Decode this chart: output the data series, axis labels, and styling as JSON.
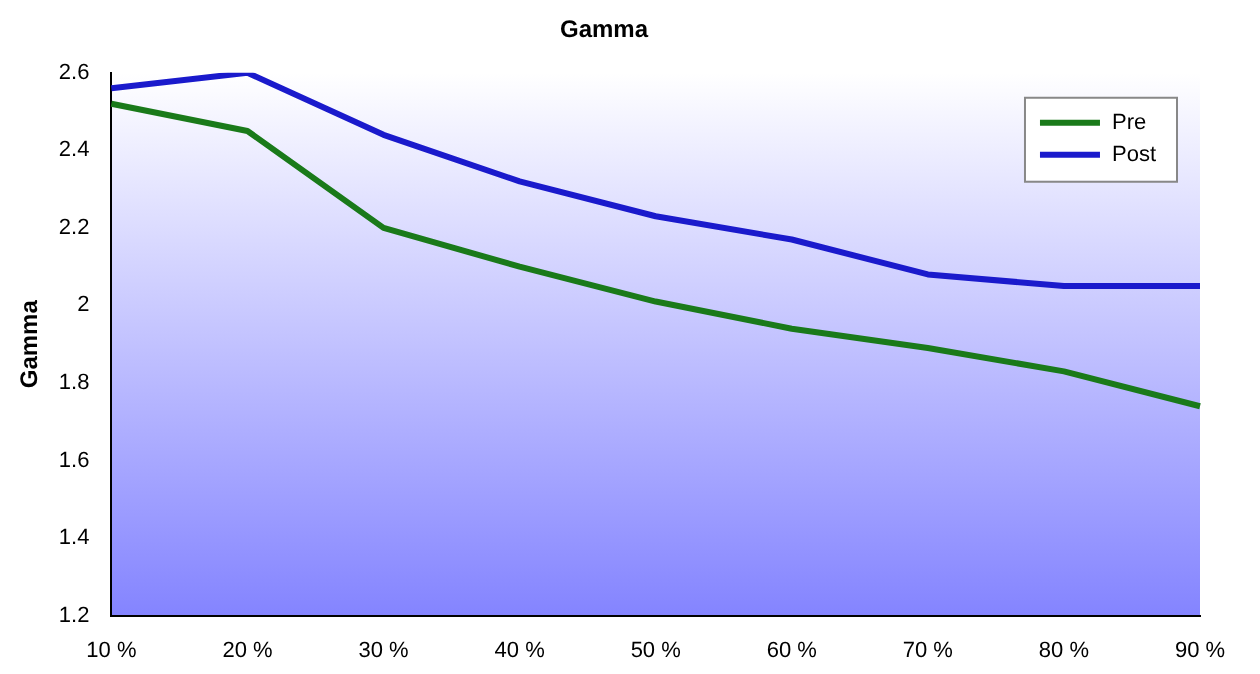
{
  "chart_data": {
    "type": "line",
    "title": "Gamma",
    "ylabel": "Gamma",
    "categories": [
      "10 %",
      "20 %",
      "30 %",
      "40 %",
      "50 %",
      "60 %",
      "70 %",
      "80 %",
      "90 %"
    ],
    "series": [
      {
        "name": "Pre",
        "color": "#1a7a1a",
        "values": [
          2.52,
          2.45,
          2.2,
          2.1,
          2.01,
          1.94,
          1.89,
          1.83,
          1.74
        ]
      },
      {
        "name": "Post",
        "color": "#1a1acc",
        "values": [
          2.56,
          2.6,
          2.44,
          2.32,
          2.23,
          2.17,
          2.08,
          2.05,
          2.05
        ]
      }
    ],
    "ylim": [
      1.2,
      2.6
    ],
    "yticks": [
      1.2,
      1.4,
      1.6,
      1.8,
      2,
      2.2,
      2.4,
      2.6
    ],
    "grid": false,
    "legend": "top right",
    "marker": "none",
    "line_style": "solid"
  }
}
